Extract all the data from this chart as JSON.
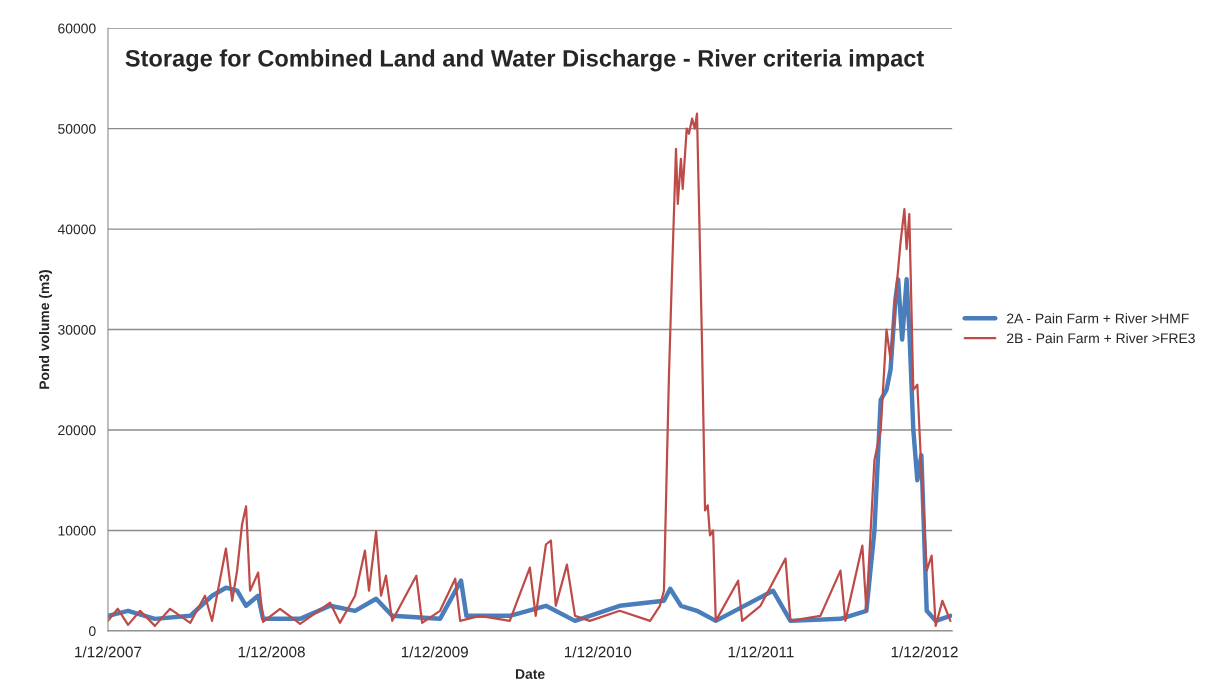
{
  "chart_data": {
    "type": "line",
    "title": "Storage for Combined Land and Water Discharge - River criteria impact",
    "xlabel": "Date",
    "ylabel": "Pond volume (m3)",
    "xlim": [
      "2007-12-01",
      "2013-02-01"
    ],
    "xticks": [
      {
        "value": "2007-12-01",
        "label": "1/12/2007"
      },
      {
        "value": "2008-12-01",
        "label": "1/12/2008"
      },
      {
        "value": "2009-12-01",
        "label": "1/12/2009"
      },
      {
        "value": "2010-12-01",
        "label": "1/12/2010"
      },
      {
        "value": "2011-12-01",
        "label": "1/12/2011"
      },
      {
        "value": "2012-12-01",
        "label": "1/12/2012"
      }
    ],
    "ylim": [
      0,
      60000
    ],
    "yticks": [
      0,
      10000,
      20000,
      30000,
      40000,
      50000,
      60000
    ],
    "grid": "y",
    "legend": "right",
    "marker": "none",
    "line_style": "solid",
    "series": [
      {
        "name": "2A - Pain Farm + River >HMF",
        "color": "#4a7ebb",
        "x": [
          "2007-12-01",
          "2008-01-15",
          "2008-03-15",
          "2008-06-02",
          "2008-07-21",
          "2008-08-21",
          "2008-09-15",
          "2008-10-05",
          "2008-11-01",
          "2008-11-12",
          "2009-02-03",
          "2009-04-11",
          "2009-06-06",
          "2009-07-23",
          "2009-08-28",
          "2009-12-13",
          "2010-01-29",
          "2010-02-10",
          "2010-05-18",
          "2010-08-07",
          "2010-10-11",
          "2011-01-19",
          "2011-04-28",
          "2011-05-12",
          "2011-06-05",
          "2011-07-11",
          "2011-08-22",
          "2011-12-28",
          "2012-02-05",
          "2012-05-27",
          "2012-07-24",
          "2012-08-11",
          "2012-08-25",
          "2012-09-07",
          "2012-09-16",
          "2012-09-27",
          "2012-10-03",
          "2012-10-12",
          "2012-10-22",
          "2012-10-28",
          "2012-11-06",
          "2012-11-15",
          "2012-11-24",
          "2012-12-06",
          "2012-12-26",
          "2013-01-28"
        ],
        "values": [
          1500,
          2000,
          1200,
          1500,
          3500,
          4300,
          4000,
          2500,
          3500,
          1200,
          1200,
          2500,
          2000,
          3200,
          1500,
          1200,
          5000,
          1500,
          1500,
          2500,
          1000,
          2500,
          3000,
          4200,
          2500,
          2000,
          1000,
          4000,
          1000,
          1200,
          2000,
          10000,
          23000,
          24000,
          26000,
          33000,
          35000,
          29000,
          35000,
          30000,
          20000,
          15000,
          17500,
          2000,
          1000,
          1500
        ]
      },
      {
        "name": "2B - Pain Farm + River >FRE3",
        "color": "#be4b48",
        "x": [
          "2007-12-01",
          "2007-12-23",
          "2008-01-15",
          "2008-02-11",
          "2008-03-15",
          "2008-04-18",
          "2008-06-02",
          "2008-07-05",
          "2008-07-21",
          "2008-08-21",
          "2008-09-04",
          "2008-09-15",
          "2008-09-26",
          "2008-10-05",
          "2008-10-14",
          "2008-11-01",
          "2008-11-12",
          "2008-12-20",
          "2009-02-03",
          "2009-04-11",
          "2009-05-03",
          "2009-06-06",
          "2009-06-28",
          "2009-07-07",
          "2009-07-23",
          "2009-08-03",
          "2009-08-14",
          "2009-08-28",
          "2009-10-21",
          "2009-11-03",
          "2009-12-13",
          "2010-01-16",
          "2010-01-27",
          "2010-03-12",
          "2010-05-18",
          "2010-07-02",
          "2010-07-15",
          "2010-08-07",
          "2010-08-18",
          "2010-08-29",
          "2010-09-23",
          "2010-10-11",
          "2010-11-13",
          "2011-01-19",
          "2011-03-28",
          "2011-04-19",
          "2011-04-28",
          "2011-05-09",
          "2011-05-16",
          "2011-05-25",
          "2011-05-29",
          "2011-06-05",
          "2011-06-09",
          "2011-06-18",
          "2011-06-23",
          "2011-06-30",
          "2011-07-06",
          "2011-07-11",
          "2011-07-22",
          "2011-07-29",
          "2011-08-04",
          "2011-08-09",
          "2011-08-16",
          "2011-08-22",
          "2011-10-11",
          "2011-10-20",
          "2011-11-30",
          "2012-01-25",
          "2012-02-05",
          "2012-04-12",
          "2012-05-27",
          "2012-06-07",
          "2012-07-15",
          "2012-07-24",
          "2012-08-11",
          "2012-08-25",
          "2012-09-07",
          "2012-09-16",
          "2012-09-27",
          "2012-10-08",
          "2012-10-17",
          "2012-10-22",
          "2012-10-28",
          "2012-11-06",
          "2012-11-15",
          "2012-11-24",
          "2012-12-06",
          "2012-12-17",
          "2012-12-26",
          "2013-01-10",
          "2013-01-28"
        ],
        "values": [
          1000,
          2200,
          600,
          2000,
          500,
          2200,
          800,
          3500,
          1000,
          8200,
          3000,
          6000,
          10600,
          12400,
          4000,
          5800,
          900,
          2200,
          700,
          2800,
          800,
          3500,
          8000,
          4000,
          9900,
          3500,
          5500,
          1000,
          5500,
          800,
          2000,
          5200,
          1000,
          1500,
          1000,
          6300,
          1500,
          8600,
          9000,
          2500,
          6600,
          1500,
          1000,
          2000,
          1000,
          2500,
          4000,
          25000,
          35500,
          48000,
          42500,
          47000,
          44000,
          50000,
          49500,
          51000,
          50000,
          51500,
          29000,
          12000,
          12500,
          9500,
          10000,
          1000,
          5000,
          1000,
          2500,
          7200,
          1000,
          1500,
          6000,
          1000,
          8500,
          2000,
          17000,
          20000,
          30000,
          27000,
          33000,
          38500,
          42000,
          38000,
          41500,
          24000,
          24500,
          16000,
          6000,
          7500,
          500,
          3000,
          1000
        ]
      }
    ]
  }
}
